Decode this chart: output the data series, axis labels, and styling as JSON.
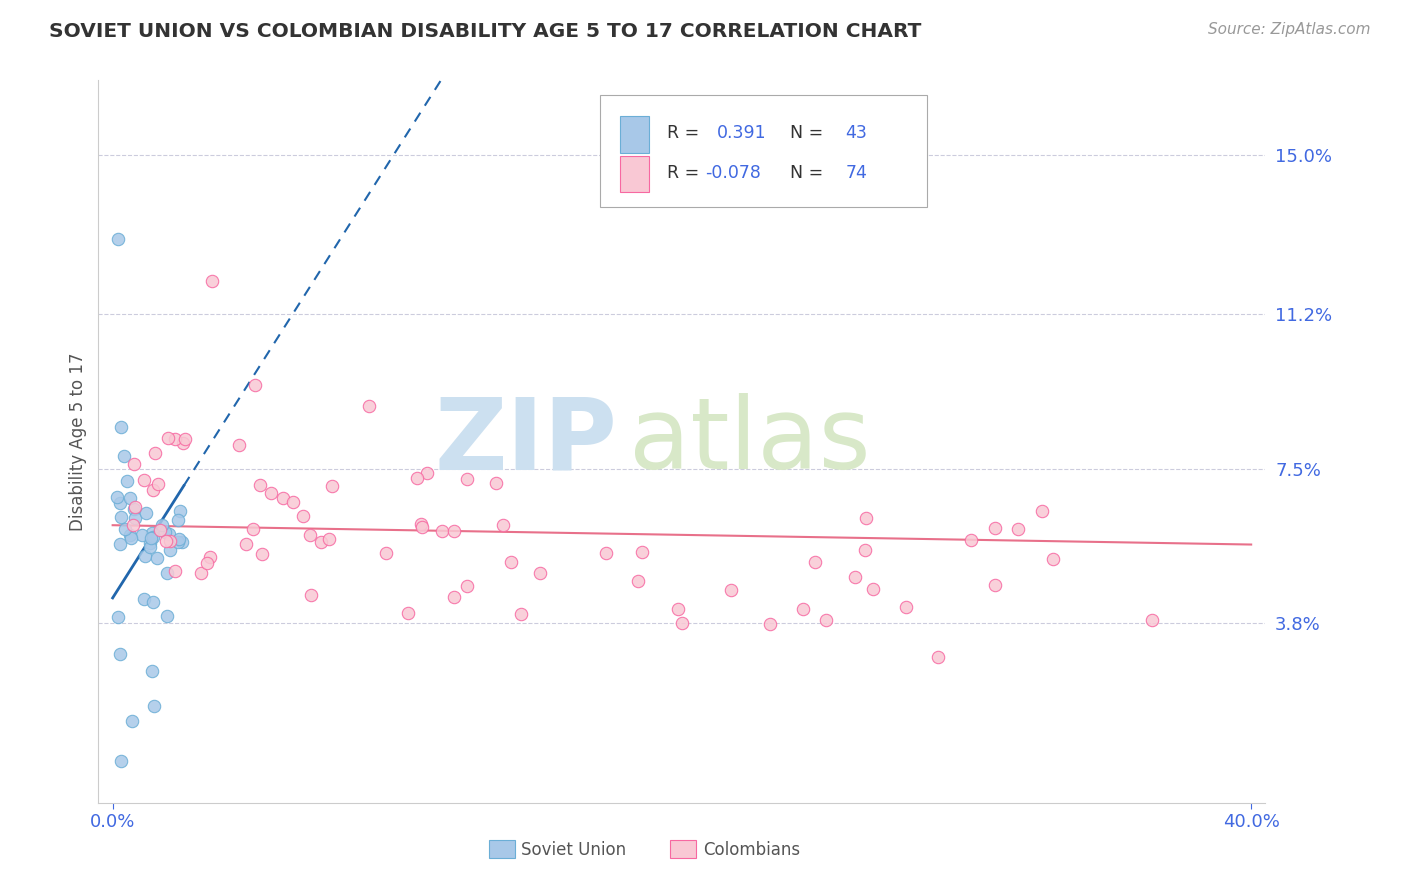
{
  "title": "SOVIET UNION VS COLOMBIAN DISABILITY AGE 5 TO 17 CORRELATION CHART",
  "source": "Source: ZipAtlas.com",
  "ylabel": "Disability Age 5 to 17",
  "xlim": [
    -0.005,
    0.405
  ],
  "ylim": [
    -0.005,
    0.168
  ],
  "yticks": [
    0.038,
    0.075,
    0.112,
    0.15
  ],
  "ytick_labels": [
    "3.8%",
    "7.5%",
    "11.2%",
    "15.0%"
  ],
  "xtick_labels": [
    "0.0%",
    "40.0%"
  ],
  "soviet_color": "#a8c8e8",
  "soviet_edge_color": "#6baed6",
  "colombian_color": "#f9c8d4",
  "colombian_edge_color": "#f768a1",
  "soviet_line_color": "#2166ac",
  "colombian_line_color": "#e8708a",
  "background_color": "#ffffff",
  "grid_color": "#ccccdd",
  "title_color": "#333333",
  "axis_label_color": "#555555",
  "tick_label_color": "#4169e1",
  "watermark_zip_color": "#cce0f0",
  "watermark_atlas_color": "#d8e8c8",
  "legend_text_color": "#333333",
  "legend_val_color": "#4169e1",
  "legend_box_edge": "#aaaaaa"
}
